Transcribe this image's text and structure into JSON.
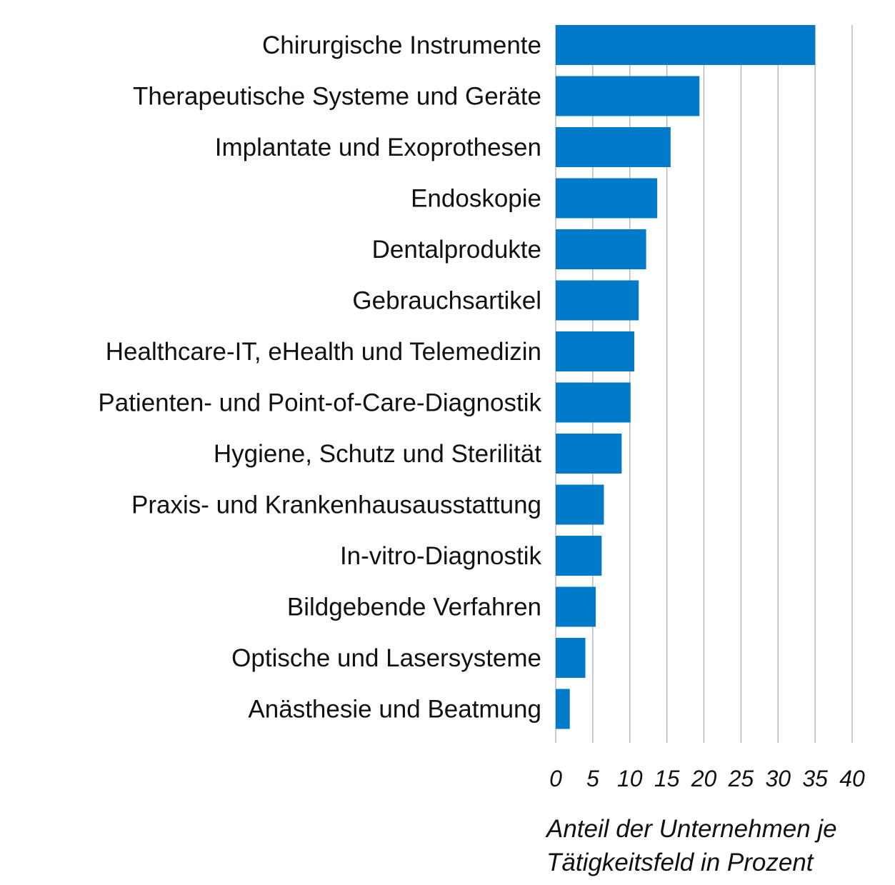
{
  "chart_data": {
    "type": "bar",
    "orientation": "horizontal",
    "title": "",
    "categories": [
      "Chirurgische Instrumente",
      "Therapeutische Systeme und Geräte",
      "Implantate und Exoprothesen",
      "Endoskopie",
      "Dentalprodukte",
      "Gebrauchsartikel",
      "Healthcare-IT, eHealth und Telemedizin",
      "Patienten- und Point-of-Care-Diagnostik",
      "Hygiene, Schutz und Sterilität",
      "Praxis- und Krankenhausausstattung",
      "In-vitro-Diagnostik",
      "Bildgebende Verfahren",
      "Optische und Lasersysteme",
      "Anästhesie und Beatmung"
    ],
    "values": [
      35.0,
      19.4,
      15.5,
      13.7,
      12.2,
      11.2,
      10.6,
      10.1,
      8.9,
      6.5,
      6.2,
      5.4,
      4.0,
      1.9
    ],
    "xlabel_lines": [
      "Anteil der Unternehmen je",
      "Tätigkeitsfeld in Prozent"
    ],
    "ylabel": "",
    "xlim": [
      0,
      40
    ],
    "xticks": [
      "0",
      "5",
      "10",
      "15",
      "20",
      "25",
      "30",
      "35",
      "40"
    ],
    "grid": "vertical",
    "bar_color": "#007ac9",
    "grid_color": "#aaaaaa"
  }
}
